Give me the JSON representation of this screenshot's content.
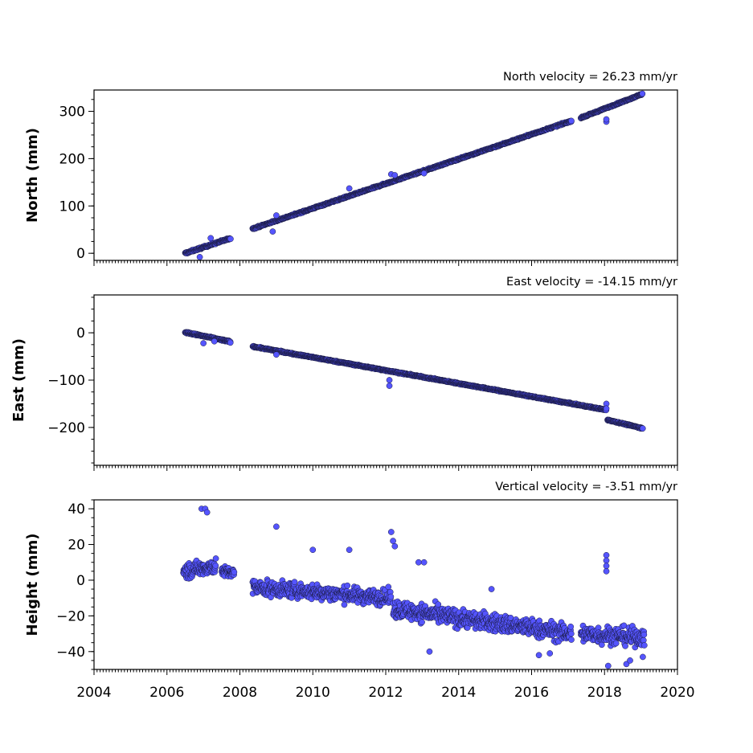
{
  "colors": {
    "marker_fill": "#5555ff",
    "marker_edge": "#1a1a40",
    "axes": "#000000",
    "background": "#ffffff"
  },
  "x_ticks": [
    "2004",
    "2006",
    "2008",
    "2010",
    "2012",
    "2014",
    "2016",
    "2018",
    "2020"
  ],
  "chart_data": [
    {
      "type": "scatter",
      "title": "North velocity = 26.23 mm/yr",
      "ylabel": "North (mm)",
      "xlim": [
        2004,
        2020
      ],
      "ylim": [
        -15,
        345
      ],
      "y_ticks": [
        0,
        100,
        200,
        300
      ],
      "segments": [
        {
          "start": 2006.5,
          "end": 2007.75,
          "y0": 0,
          "y1": 32,
          "noise": 2.5
        },
        {
          "start": 2008.35,
          "end": 2017.1,
          "y0": 52,
          "y1": 280,
          "noise": 2.0
        },
        {
          "start": 2017.35,
          "end": 2019.05,
          "y0": 286,
          "y1": 337,
          "noise": 1.8
        }
      ],
      "outliers": [
        [
          2006.9,
          -8
        ],
        [
          2007.2,
          32
        ],
        [
          2008.9,
          46
        ],
        [
          2009.0,
          80
        ],
        [
          2011.0,
          137
        ],
        [
          2012.15,
          167
        ],
        [
          2012.25,
          165
        ],
        [
          2013.05,
          169
        ],
        [
          2018.05,
          278
        ],
        [
          2018.05,
          283
        ]
      ]
    },
    {
      "type": "scatter",
      "title": "East velocity = -14.15 mm/yr",
      "ylabel": "East (mm)",
      "xlim": [
        2004,
        2020
      ],
      "ylim": [
        -280,
        80
      ],
      "y_ticks": [
        0,
        -100,
        -200
      ],
      "y_tick_labels": [
        "0",
        "−100",
        "−200"
      ],
      "segments": [
        {
          "start": 2006.5,
          "end": 2007.75,
          "y0": 1,
          "y1": -19,
          "noise": 2.2
        },
        {
          "start": 2008.35,
          "end": 2018.05,
          "y0": -29,
          "y1": -163,
          "noise": 1.8
        },
        {
          "start": 2018.08,
          "end": 2019.05,
          "y0": -184,
          "y1": -202,
          "noise": 1.6
        }
      ],
      "outliers": [
        [
          2007.0,
          -22
        ],
        [
          2007.3,
          -18
        ],
        [
          2009.0,
          -46
        ],
        [
          2012.1,
          -112
        ],
        [
          2012.1,
          -100
        ],
        [
          2018.05,
          -150
        ],
        [
          2018.05,
          -160
        ]
      ]
    },
    {
      "type": "scatter",
      "title": "Vertical velocity = -3.51 mm/yr",
      "ylabel": "Height (mm)",
      "xlim": [
        2004,
        2020
      ],
      "ylim": [
        -50,
        45
      ],
      "y_ticks": [
        40,
        20,
        0,
        -20,
        -40
      ],
      "y_tick_labels": [
        "40",
        "20",
        "0",
        "−20",
        "−40"
      ],
      "segments": [
        {
          "start": 2006.45,
          "end": 2007.35,
          "y0": 5,
          "y1": 8,
          "noise": 6.0
        },
        {
          "start": 2007.5,
          "end": 2007.85,
          "y0": 5,
          "y1": 4,
          "noise": 4.0
        },
        {
          "start": 2008.35,
          "end": 2012.15,
          "y0": -4,
          "y1": -10,
          "noise": 6.0
        },
        {
          "start": 2012.2,
          "end": 2017.1,
          "y0": -16,
          "y1": -30,
          "noise": 7.0
        },
        {
          "start": 2017.35,
          "end": 2019.1,
          "y0": -30,
          "y1": -32,
          "noise": 7.0
        }
      ],
      "outliers": [
        [
          2006.95,
          40
        ],
        [
          2007.05,
          40
        ],
        [
          2007.1,
          38
        ],
        [
          2009.0,
          30
        ],
        [
          2010.0,
          17
        ],
        [
          2011.0,
          17
        ],
        [
          2012.15,
          27
        ],
        [
          2012.2,
          22
        ],
        [
          2012.25,
          19
        ],
        [
          2012.9,
          10
        ],
        [
          2013.05,
          10
        ],
        [
          2014.9,
          -5
        ],
        [
          2018.05,
          14
        ],
        [
          2018.05,
          11
        ],
        [
          2018.05,
          8
        ],
        [
          2018.05,
          5
        ],
        [
          2013.2,
          -40
        ],
        [
          2016.2,
          -42
        ],
        [
          2016.5,
          -41
        ],
        [
          2018.1,
          -48
        ],
        [
          2018.6,
          -47
        ],
        [
          2018.7,
          -45
        ],
        [
          2019.05,
          -43
        ]
      ]
    }
  ]
}
